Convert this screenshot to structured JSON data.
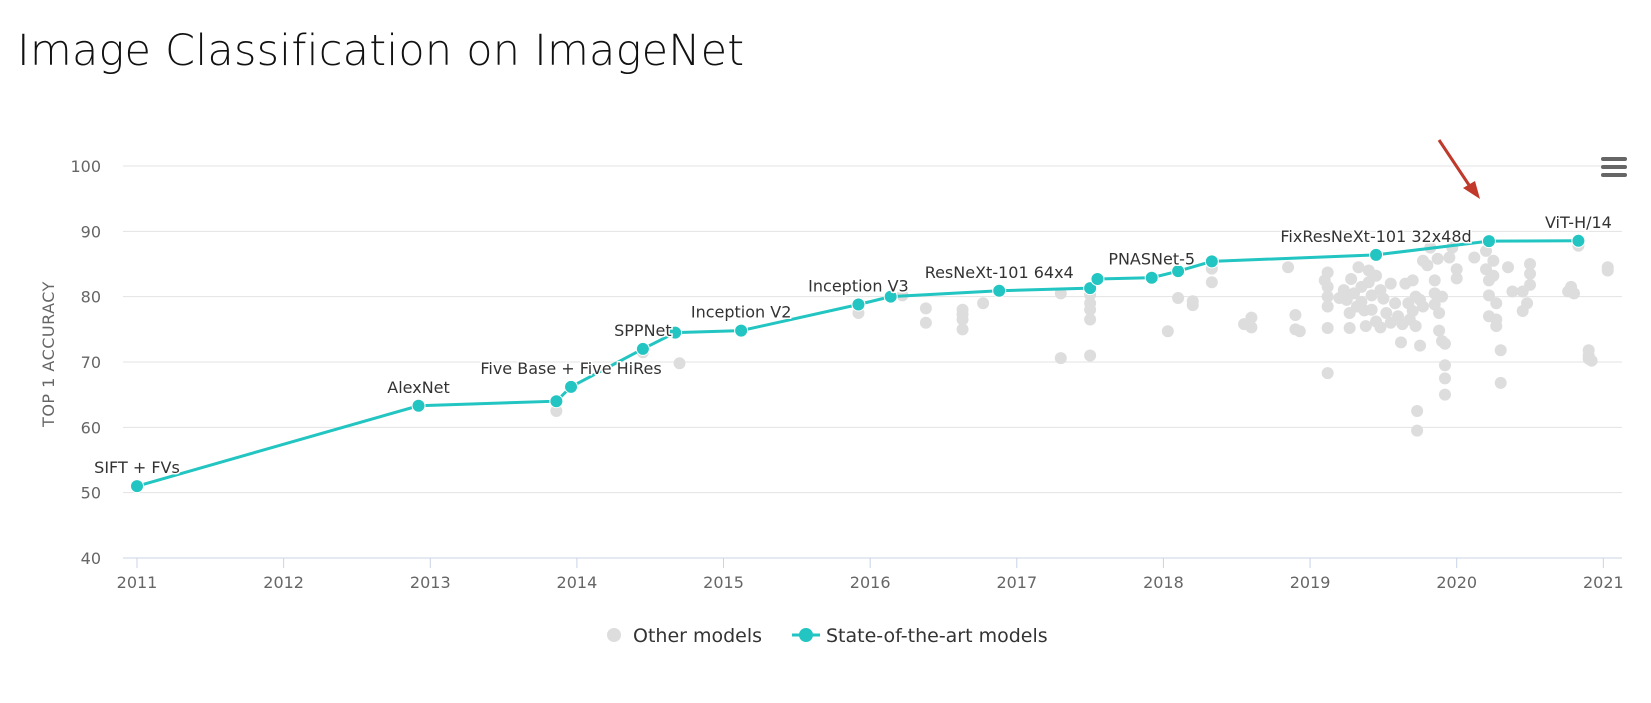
{
  "page": {
    "title": "Image Classification on ImageNet"
  },
  "colors": {
    "sota": "#22c5c1",
    "other": "#dddddd",
    "grid": "#e3e3e3",
    "axis": "#c8d3e6",
    "arrow": "#c0392b"
  },
  "icons": {
    "menu": "hamburger-menu-icon",
    "arrow": "red-arrow-annotation"
  },
  "chart_data": {
    "type": "scatter",
    "title": "Image Classification on ImageNet",
    "xlabel": "",
    "ylabel": "TOP 1 ACCURACY",
    "xlim": [
      2011,
      2021.1
    ],
    "ylim": [
      40,
      100
    ],
    "xticks": [
      "2011",
      "2012",
      "2013",
      "2014",
      "2015",
      "2016",
      "2017",
      "2018",
      "2019",
      "2020",
      "2021"
    ],
    "yticks": [
      "40",
      "50",
      "60",
      "70",
      "80",
      "90",
      "100"
    ],
    "grid": true,
    "legend": "bottom-center",
    "series": [
      {
        "name": "State-of-the-art models",
        "style": "line",
        "points": [
          {
            "x": 2011.0,
            "y": 51.0,
            "label": "SIFT + FVs"
          },
          {
            "x": 2012.92,
            "y": 63.3,
            "label": "AlexNet"
          },
          {
            "x": 2013.86,
            "y": 64.0,
            "label": ""
          },
          {
            "x": 2013.96,
            "y": 66.2,
            "label": "Five Base + Five HiRes"
          },
          {
            "x": 2014.45,
            "y": 72.0,
            "label": "SPPNet"
          },
          {
            "x": 2014.67,
            "y": 74.5,
            "label": ""
          },
          {
            "x": 2015.12,
            "y": 74.8,
            "label": "Inception V2"
          },
          {
            "x": 2015.92,
            "y": 78.8,
            "label": "Inception V3"
          },
          {
            "x": 2016.14,
            "y": 80.0,
            "label": ""
          },
          {
            "x": 2016.88,
            "y": 80.9,
            "label": "ResNeXt-101 64x4"
          },
          {
            "x": 2017.5,
            "y": 81.3,
            "label": ""
          },
          {
            "x": 2017.55,
            "y": 82.7,
            "label": ""
          },
          {
            "x": 2017.92,
            "y": 82.9,
            "label": "PNASNet-5"
          },
          {
            "x": 2018.1,
            "y": 83.9,
            "label": ""
          },
          {
            "x": 2018.33,
            "y": 85.4,
            "label": ""
          },
          {
            "x": 2019.45,
            "y": 86.4,
            "label": "FixResNeXt-101 32x48d"
          },
          {
            "x": 2020.22,
            "y": 88.5,
            "label": ""
          },
          {
            "x": 2020.83,
            "y": 88.55,
            "label": "ViT-H/14"
          }
        ]
      },
      {
        "name": "Other models",
        "style": "scatter",
        "points": [
          [
            2013.86,
            62.5
          ],
          [
            2014.45,
            71.5
          ],
          [
            2014.7,
            69.8
          ],
          [
            2015.92,
            77.5
          ],
          [
            2016.22,
            80.2
          ],
          [
            2016.38,
            78.2
          ],
          [
            2016.38,
            76.0
          ],
          [
            2016.63,
            78.0
          ],
          [
            2016.63,
            76.5
          ],
          [
            2016.63,
            75.0
          ],
          [
            2016.63,
            77.3
          ],
          [
            2016.77,
            79.0
          ],
          [
            2017.3,
            80.5
          ],
          [
            2017.3,
            70.6
          ],
          [
            2017.5,
            71.0
          ],
          [
            2017.5,
            79.0
          ],
          [
            2017.5,
            78.0
          ],
          [
            2017.5,
            76.5
          ],
          [
            2017.5,
            80.3
          ],
          [
            2018.03,
            74.7
          ],
          [
            2018.1,
            79.8
          ],
          [
            2018.2,
            78.7
          ],
          [
            2018.2,
            79.3
          ],
          [
            2018.33,
            84.3
          ],
          [
            2018.33,
            82.2
          ],
          [
            2018.55,
            75.8
          ],
          [
            2018.6,
            76.8
          ],
          [
            2018.6,
            75.3
          ],
          [
            2018.85,
            84.5
          ],
          [
            2018.9,
            77.2
          ],
          [
            2018.9,
            75.0
          ],
          [
            2018.93,
            74.7
          ],
          [
            2019.1,
            82.5
          ],
          [
            2019.12,
            83.7
          ],
          [
            2019.12,
            81.5
          ],
          [
            2019.12,
            80.0
          ],
          [
            2019.12,
            78.5
          ],
          [
            2019.12,
            75.2
          ],
          [
            2019.12,
            68.3
          ],
          [
            2019.2,
            79.8
          ],
          [
            2019.23,
            81.0
          ],
          [
            2019.25,
            79.5
          ],
          [
            2019.27,
            77.5
          ],
          [
            2019.27,
            75.2
          ],
          [
            2019.28,
            82.7
          ],
          [
            2019.3,
            80.5
          ],
          [
            2019.32,
            78.5
          ],
          [
            2019.33,
            84.5
          ],
          [
            2019.35,
            81.5
          ],
          [
            2019.35,
            79.2
          ],
          [
            2019.37,
            77.9
          ],
          [
            2019.38,
            75.5
          ],
          [
            2019.4,
            84.0
          ],
          [
            2019.4,
            82.2
          ],
          [
            2019.42,
            80.2
          ],
          [
            2019.42,
            78.0
          ],
          [
            2019.45,
            83.2
          ],
          [
            2019.45,
            76.2
          ],
          [
            2019.48,
            81.0
          ],
          [
            2019.48,
            75.3
          ],
          [
            2019.5,
            79.7
          ],
          [
            2019.52,
            77.5
          ],
          [
            2019.55,
            82.0
          ],
          [
            2019.55,
            76.0
          ],
          [
            2019.58,
            79.0
          ],
          [
            2019.6,
            77.0
          ],
          [
            2019.62,
            73.0
          ],
          [
            2019.63,
            75.8
          ],
          [
            2019.65,
            82.0
          ],
          [
            2019.67,
            79.0
          ],
          [
            2019.68,
            76.5
          ],
          [
            2019.7,
            82.5
          ],
          [
            2019.7,
            77.8
          ],
          [
            2019.72,
            75.5
          ],
          [
            2019.72,
            80.0
          ],
          [
            2019.73,
            62.5
          ],
          [
            2019.73,
            59.5
          ],
          [
            2019.75,
            79.5
          ],
          [
            2019.75,
            72.5
          ],
          [
            2019.77,
            78.5
          ],
          [
            2019.77,
            85.5
          ],
          [
            2019.8,
            84.8
          ],
          [
            2019.82,
            87.5
          ],
          [
            2019.85,
            82.5
          ],
          [
            2019.85,
            80.5
          ],
          [
            2019.85,
            78.8
          ],
          [
            2019.87,
            85.8
          ],
          [
            2019.88,
            77.5
          ],
          [
            2019.88,
            74.8
          ],
          [
            2019.9,
            80.0
          ],
          [
            2019.9,
            73.2
          ],
          [
            2019.92,
            72.8
          ],
          [
            2019.92,
            69.5
          ],
          [
            2019.92,
            67.5
          ],
          [
            2019.92,
            65.0
          ],
          [
            2019.95,
            86.0
          ],
          [
            2019.97,
            87.5
          ],
          [
            2020.0,
            84.2
          ],
          [
            2020.0,
            82.8
          ],
          [
            2020.12,
            86.0
          ],
          [
            2020.2,
            87.0
          ],
          [
            2020.2,
            84.2
          ],
          [
            2020.22,
            82.5
          ],
          [
            2020.22,
            80.2
          ],
          [
            2020.22,
            77.0
          ],
          [
            2020.25,
            85.5
          ],
          [
            2020.25,
            83.2
          ],
          [
            2020.27,
            79.0
          ],
          [
            2020.27,
            76.5
          ],
          [
            2020.27,
            75.5
          ],
          [
            2020.3,
            71.8
          ],
          [
            2020.3,
            66.8
          ],
          [
            2020.35,
            84.5
          ],
          [
            2020.38,
            80.8
          ],
          [
            2020.45,
            80.8
          ],
          [
            2020.45,
            77.8
          ],
          [
            2020.48,
            79.0
          ],
          [
            2020.5,
            85.0
          ],
          [
            2020.5,
            83.5
          ],
          [
            2020.5,
            81.8
          ],
          [
            2020.76,
            80.8
          ],
          [
            2020.78,
            81.5
          ],
          [
            2020.8,
            80.5
          ],
          [
            2020.83,
            87.8
          ],
          [
            2020.9,
            71.8
          ],
          [
            2020.9,
            71.0
          ],
          [
            2020.9,
            70.5
          ],
          [
            2020.92,
            70.2
          ],
          [
            2021.03,
            84.5
          ],
          [
            2021.03,
            84.0
          ]
        ]
      }
    ]
  },
  "legend": {
    "other_label": "Other models",
    "sota_label": "State-of-the-art models"
  }
}
